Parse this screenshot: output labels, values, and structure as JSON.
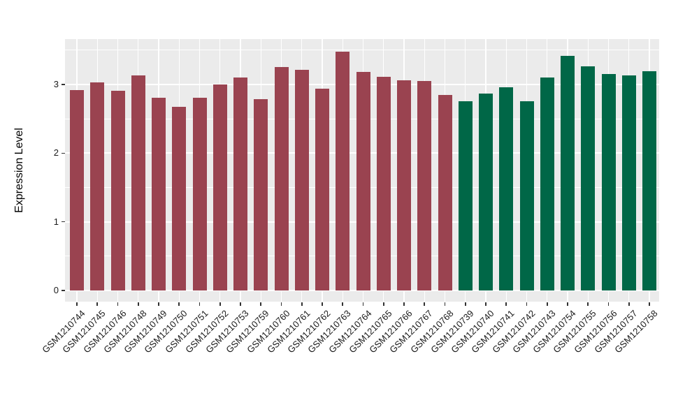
{
  "colors": {
    "background": "#FFFFFF",
    "panel": "#EBEBEB",
    "grid": "#FFFFFF",
    "tick": "#333333",
    "axis_text": "#1A1A1A",
    "left_group_color": "#9A4350",
    "right_group_color": "#006747"
  },
  "chart_data": {
    "type": "bar",
    "title": "",
    "xlabel": "",
    "ylabel": "Expression Level",
    "ylim": [
      0,
      3.67
    ],
    "yticks": [
      0,
      1,
      2,
      3
    ],
    "minor_gridlines": [
      0.5,
      1.5,
      2.5,
      3.5
    ],
    "grid": "on",
    "legend": "none",
    "series": [
      {
        "name": "left_group",
        "color": "#9A4350",
        "count": 19
      },
      {
        "name": "right_group",
        "color": "#006747",
        "count": 10
      }
    ],
    "bars": [
      {
        "label": "GSM1210744",
        "value": 2.92,
        "group": "left_group"
      },
      {
        "label": "GSM1210745",
        "value": 3.03,
        "group": "left_group"
      },
      {
        "label": "GSM1210746",
        "value": 2.91,
        "group": "left_group"
      },
      {
        "label": "GSM1210748",
        "value": 3.13,
        "group": "left_group"
      },
      {
        "label": "GSM1210749",
        "value": 2.81,
        "group": "left_group"
      },
      {
        "label": "GSM1210750",
        "value": 2.67,
        "group": "left_group"
      },
      {
        "label": "GSM1210751",
        "value": 2.81,
        "group": "left_group"
      },
      {
        "label": "GSM1210752",
        "value": 3.0,
        "group": "left_group"
      },
      {
        "label": "GSM1210753",
        "value": 3.1,
        "group": "left_group"
      },
      {
        "label": "GSM1210759",
        "value": 2.79,
        "group": "left_group"
      },
      {
        "label": "GSM1210760",
        "value": 3.25,
        "group": "left_group"
      },
      {
        "label": "GSM1210761",
        "value": 3.21,
        "group": "left_group"
      },
      {
        "label": "GSM1210762",
        "value": 2.94,
        "group": "left_group"
      },
      {
        "label": "GSM1210763",
        "value": 3.48,
        "group": "left_group"
      },
      {
        "label": "GSM1210764",
        "value": 3.18,
        "group": "left_group"
      },
      {
        "label": "GSM1210765",
        "value": 3.11,
        "group": "left_group"
      },
      {
        "label": "GSM1210766",
        "value": 3.06,
        "group": "left_group"
      },
      {
        "label": "GSM1210767",
        "value": 3.05,
        "group": "left_group"
      },
      {
        "label": "GSM1210768",
        "value": 2.85,
        "group": "left_group"
      },
      {
        "label": "GSM1210739",
        "value": 2.76,
        "group": "right_group"
      },
      {
        "label": "GSM1210740",
        "value": 2.87,
        "group": "right_group"
      },
      {
        "label": "GSM1210741",
        "value": 2.96,
        "group": "right_group"
      },
      {
        "label": "GSM1210742",
        "value": 2.76,
        "group": "right_group"
      },
      {
        "label": "GSM1210743",
        "value": 3.1,
        "group": "right_group"
      },
      {
        "label": "GSM1210754",
        "value": 3.42,
        "group": "right_group"
      },
      {
        "label": "GSM1210755",
        "value": 3.26,
        "group": "right_group"
      },
      {
        "label": "GSM1210756",
        "value": 3.15,
        "group": "right_group"
      },
      {
        "label": "GSM1210757",
        "value": 3.13,
        "group": "right_group"
      },
      {
        "label": "GSM1210758",
        "value": 3.19,
        "group": "right_group"
      }
    ]
  }
}
